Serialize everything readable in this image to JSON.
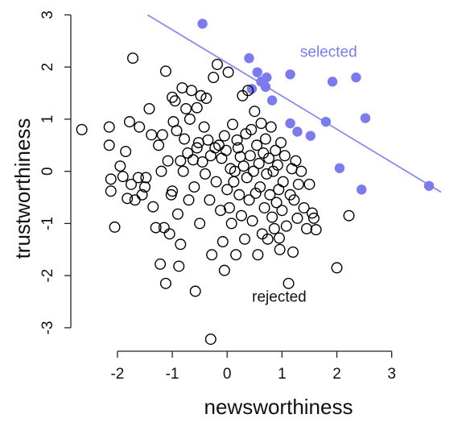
{
  "chart_data": {
    "type": "scatter",
    "title": "",
    "xlabel": "newsworthiness",
    "ylabel": "trustworthiness",
    "xlim": [
      -2.85,
      3.9
    ],
    "ylim": [
      -3.45,
      3.1
    ],
    "xticks": [
      -2,
      -1,
      0,
      1,
      2,
      3
    ],
    "yticks": [
      -3,
      -2,
      -1,
      0,
      1,
      2,
      3
    ],
    "grid": false,
    "colors": {
      "selected": "#7B7BEE",
      "rejected": "#000000",
      "line": "#8A8AEE"
    },
    "line": {
      "x": [
        -1.45,
        3.9
      ],
      "y": [
        3.0,
        -0.4
      ]
    },
    "annotations": [
      {
        "text": "selected",
        "x": 1.85,
        "y": 2.2,
        "series": "selected"
      },
      {
        "text": "rejected",
        "x": 0.95,
        "y": -2.5,
        "series": "rejected"
      }
    ],
    "series": [
      {
        "name": "selected",
        "points": [
          [
            -0.45,
            2.83
          ],
          [
            0.4,
            2.17
          ],
          [
            0.45,
            1.58
          ],
          [
            0.55,
            1.9
          ],
          [
            0.62,
            1.72
          ],
          [
            0.7,
            1.62
          ],
          [
            0.72,
            1.8
          ],
          [
            0.82,
            1.36
          ],
          [
            1.15,
            1.86
          ],
          [
            1.15,
            0.92
          ],
          [
            1.28,
            0.76
          ],
          [
            1.52,
            0.68
          ],
          [
            1.8,
            0.95
          ],
          [
            1.92,
            1.72
          ],
          [
            2.05,
            0.06
          ],
          [
            2.35,
            1.8
          ],
          [
            2.45,
            -0.35
          ],
          [
            2.52,
            1.02
          ],
          [
            3.68,
            -0.28
          ]
        ]
      },
      {
        "name": "rejected",
        "points": [
          [
            -2.65,
            0.8
          ],
          [
            -2.15,
            0.85
          ],
          [
            -2.15,
            0.5
          ],
          [
            -2.12,
            -0.15
          ],
          [
            -2.12,
            -0.38
          ],
          [
            -2.05,
            -1.07
          ],
          [
            -1.95,
            0.1
          ],
          [
            -1.9,
            -0.1
          ],
          [
            -1.85,
            0.38
          ],
          [
            -1.82,
            -0.52
          ],
          [
            -1.78,
            0.95
          ],
          [
            -1.75,
            -0.25
          ],
          [
            -1.72,
            2.17
          ],
          [
            -1.68,
            -0.55
          ],
          [
            -1.62,
            -0.12
          ],
          [
            -1.6,
            0.85
          ],
          [
            -1.55,
            -0.45
          ],
          [
            -1.5,
            -0.3
          ],
          [
            -1.48,
            -0.12
          ],
          [
            -1.42,
            1.2
          ],
          [
            -1.38,
            0.7
          ],
          [
            -1.35,
            -0.68
          ],
          [
            -1.3,
            -1.08
          ],
          [
            -1.25,
            0.5
          ],
          [
            -1.22,
            -1.78
          ],
          [
            -1.2,
            0.0
          ],
          [
            -1.18,
            0.7
          ],
          [
            -1.15,
            -1.08
          ],
          [
            -1.12,
            -2.15
          ],
          [
            -1.12,
            1.92
          ],
          [
            -1.08,
            0.2
          ],
          [
            -1.05,
            -1.2
          ],
          [
            -1.02,
            -0.45
          ],
          [
            -1.0,
            1.42
          ],
          [
            -1.0,
            -0.38
          ],
          [
            -0.98,
            0.95
          ],
          [
            -0.95,
            1.35
          ],
          [
            -0.92,
            0.78
          ],
          [
            -0.9,
            -0.82
          ],
          [
            -0.88,
            -1.82
          ],
          [
            -0.85,
            0.2
          ],
          [
            -0.85,
            -1.4
          ],
          [
            -0.82,
            1.6
          ],
          [
            -0.8,
            0.0
          ],
          [
            -0.78,
            0.62
          ],
          [
            -0.75,
            1.2
          ],
          [
            -0.72,
            0.35
          ],
          [
            -0.7,
            -0.55
          ],
          [
            -0.68,
            1.0
          ],
          [
            -0.65,
            1.55
          ],
          [
            -0.62,
            0.22
          ],
          [
            -0.6,
            -0.3
          ],
          [
            -0.58,
            -2.3
          ],
          [
            -0.55,
            1.22
          ],
          [
            -0.55,
            0.45
          ],
          [
            -0.52,
            0.55
          ],
          [
            -0.5,
            -1.0
          ],
          [
            -0.48,
            1.45
          ],
          [
            -0.45,
            0.18
          ],
          [
            -0.42,
            0.85
          ],
          [
            -0.4,
            -0.05
          ],
          [
            -0.38,
            1.4
          ],
          [
            -0.35,
            0.6
          ],
          [
            -0.32,
            -0.55
          ],
          [
            -0.3,
            0.3
          ],
          [
            -0.28,
            -1.6
          ],
          [
            -0.25,
            1.8
          ],
          [
            -0.22,
            0.45
          ],
          [
            -0.2,
            -0.2
          ],
          [
            -0.18,
            2.05
          ],
          [
            -0.15,
            0.5
          ],
          [
            -0.12,
            -0.75
          ],
          [
            -0.1,
            0.25
          ],
          [
            -0.08,
            -1.35
          ],
          [
            -0.05,
            0.68
          ],
          [
            -0.02,
            0.4
          ],
          [
            0.0,
            -0.35
          ],
          [
            0.02,
            1.9
          ],
          [
            0.04,
            -0.7
          ],
          [
            0.06,
            0.05
          ],
          [
            0.08,
            -1.0
          ],
          [
            0.1,
            0.9
          ],
          [
            0.12,
            -0.2
          ],
          [
            0.14,
            0.0
          ],
          [
            0.16,
            -1.6
          ],
          [
            0.18,
            0.6
          ],
          [
            0.2,
            0.45
          ],
          [
            0.22,
            -0.45
          ],
          [
            0.24,
            0.28
          ],
          [
            0.26,
            -0.85
          ],
          [
            0.28,
            1.45
          ],
          [
            0.3,
            0.1
          ],
          [
            0.32,
            -1.3
          ],
          [
            0.34,
            0.72
          ],
          [
            0.36,
            -0.12
          ],
          [
            0.38,
            1.55
          ],
          [
            0.4,
            -0.55
          ],
          [
            0.42,
            0.3
          ],
          [
            0.44,
            0.8
          ],
          [
            0.46,
            -0.95
          ],
          [
            0.48,
            0.0
          ],
          [
            0.5,
            1.15
          ],
          [
            0.52,
            -0.42
          ],
          [
            0.54,
            0.5
          ],
          [
            0.56,
            -1.6
          ],
          [
            0.58,
            0.15
          ],
          [
            0.6,
            -0.3
          ],
          [
            0.62,
            0.92
          ],
          [
            0.64,
            -1.2
          ],
          [
            0.66,
            0.35
          ],
          [
            0.68,
            -0.7
          ],
          [
            0.7,
            0.62
          ],
          [
            0.72,
            -0.05
          ],
          [
            0.74,
            -1.3
          ],
          [
            0.76,
            0.25
          ],
          [
            0.78,
            -0.45
          ],
          [
            0.8,
            0.85
          ],
          [
            0.82,
            -0.88
          ],
          [
            0.84,
            0.0
          ],
          [
            0.86,
            -1.1
          ],
          [
            0.88,
            0.4
          ],
          [
            0.9,
            -0.6
          ],
          [
            0.92,
            0.12
          ],
          [
            0.94,
            -0.35
          ],
          [
            0.96,
            -1.5
          ],
          [
            0.98,
            0.55
          ],
          [
            1.0,
            -0.75
          ],
          [
            1.02,
            -0.2
          ],
          [
            1.05,
            0.3
          ],
          [
            1.08,
            -1.05
          ],
          [
            1.12,
            -2.15
          ],
          [
            1.15,
            -0.45
          ],
          [
            1.18,
            0.05
          ],
          [
            1.2,
            -1.55
          ],
          [
            1.22,
            -0.55
          ],
          [
            1.25,
            0.2
          ],
          [
            1.28,
            -0.9
          ],
          [
            1.3,
            -0.25
          ],
          [
            1.35,
            0.0
          ],
          [
            1.4,
            -0.7
          ],
          [
            1.45,
            -1.1
          ],
          [
            1.5,
            -0.25
          ],
          [
            1.55,
            -0.8
          ],
          [
            1.58,
            -0.9
          ],
          [
            1.62,
            -1.12
          ],
          [
            -0.3,
            -3.22
          ],
          [
            2.0,
            -1.85
          ],
          [
            2.22,
            -0.85
          ],
          [
            0.95,
            -1.28
          ],
          [
            -0.05,
            -1.9
          ]
        ]
      }
    ]
  }
}
